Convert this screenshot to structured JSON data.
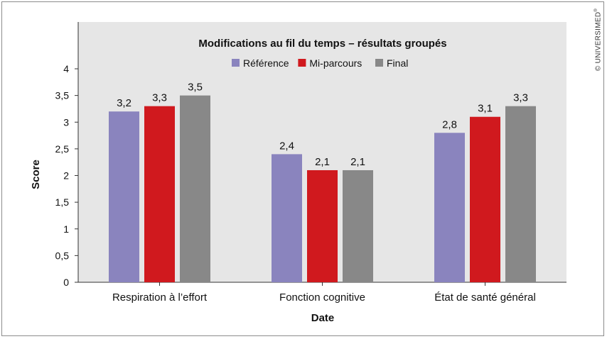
{
  "watermark": "© UNIVERSIMED",
  "watermark_mark": "®",
  "chart_data": {
    "type": "bar",
    "title": "Modifications au fil du temps – résultats groupés",
    "xlabel": "Date",
    "ylabel": "Score",
    "categories": [
      "Respiration à l’effort",
      "Fonction cognitive",
      "État de santé général"
    ],
    "series": [
      {
        "name": "Référence",
        "color": "#8a84be",
        "values": [
          3.2,
          2.4,
          2.8
        ],
        "labels": [
          "3,2",
          "2,4",
          "2,8"
        ]
      },
      {
        "name": "Mi-parcours",
        "color": "#d0191e",
        "values": [
          3.3,
          2.1,
          3.1
        ],
        "labels": [
          "3,3",
          "2,1",
          "3,1"
        ]
      },
      {
        "name": "Final",
        "color": "#888888",
        "values": [
          3.5,
          2.1,
          3.3
        ],
        "labels": [
          "3,5",
          "2,1",
          "3,3"
        ]
      }
    ],
    "ylim": [
      0,
      4
    ],
    "yticks": [
      0,
      0.5,
      1,
      1.5,
      2,
      2.5,
      3,
      3.5,
      4
    ],
    "ytick_labels": [
      "0",
      "0,5",
      "1",
      "1,5",
      "2",
      "2,5",
      "3",
      "3,5",
      "4"
    ],
    "grid": false,
    "legend_position": "top-center",
    "plot_background": "#e6e6e6"
  }
}
